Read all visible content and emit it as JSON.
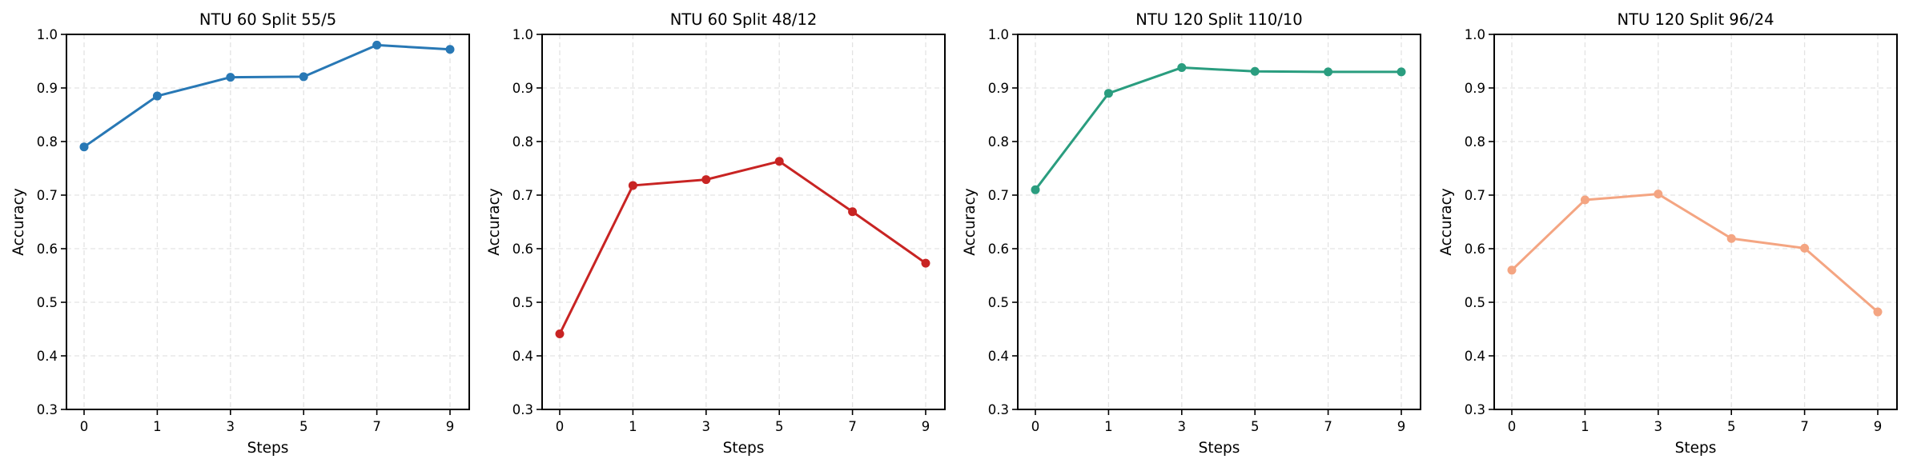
{
  "chart_data": [
    {
      "type": "line",
      "title": "NTU 60 Split 55/5",
      "xlabel": "Steps",
      "ylabel": "Accuracy",
      "categories": [
        "0",
        "1",
        "3",
        "5",
        "7",
        "9"
      ],
      "values": [
        0.79,
        0.885,
        0.92,
        0.921,
        0.98,
        0.972
      ],
      "ylim": [
        0.3,
        1.0
      ],
      "yticks": [
        "0.3",
        "0.4",
        "0.5",
        "0.6",
        "0.7",
        "0.8",
        "0.9",
        "1.0"
      ],
      "color": "#2878b5",
      "grid": true,
      "legend": null
    },
    {
      "type": "line",
      "title": "NTU 60 Split 48/12",
      "xlabel": "Steps",
      "ylabel": "Accuracy",
      "categories": [
        "0",
        "1",
        "3",
        "5",
        "7",
        "9"
      ],
      "values": [
        0.441,
        0.718,
        0.729,
        0.763,
        0.669,
        0.573
      ],
      "ylim": [
        0.3,
        1.0
      ],
      "yticks": [
        "0.3",
        "0.4",
        "0.5",
        "0.6",
        "0.7",
        "0.8",
        "0.9",
        "1.0"
      ],
      "color": "#c82423",
      "grid": true,
      "legend": null
    },
    {
      "type": "line",
      "title": "NTU 120 Split 110/10",
      "xlabel": "Steps",
      "ylabel": "Accuracy",
      "categories": [
        "0",
        "1",
        "3",
        "5",
        "7",
        "9"
      ],
      "values": [
        0.71,
        0.89,
        0.938,
        0.931,
        0.93,
        0.93
      ],
      "ylim": [
        0.3,
        1.0
      ],
      "yticks": [
        "0.3",
        "0.4",
        "0.5",
        "0.6",
        "0.7",
        "0.8",
        "0.9",
        "1.0"
      ],
      "color": "#2a9d7f",
      "grid": true,
      "legend": null
    },
    {
      "type": "line",
      "title": "NTU 120 Split 96/24",
      "xlabel": "Steps",
      "ylabel": "Accuracy",
      "categories": [
        "0",
        "1",
        "3",
        "5",
        "7",
        "9"
      ],
      "values": [
        0.56,
        0.691,
        0.702,
        0.619,
        0.601,
        0.482
      ],
      "ylim": [
        0.3,
        1.0
      ],
      "yticks": [
        "0.3",
        "0.4",
        "0.5",
        "0.6",
        "0.7",
        "0.8",
        "0.9",
        "1.0"
      ],
      "color": "#f4a582",
      "grid": true,
      "legend": null
    }
  ]
}
